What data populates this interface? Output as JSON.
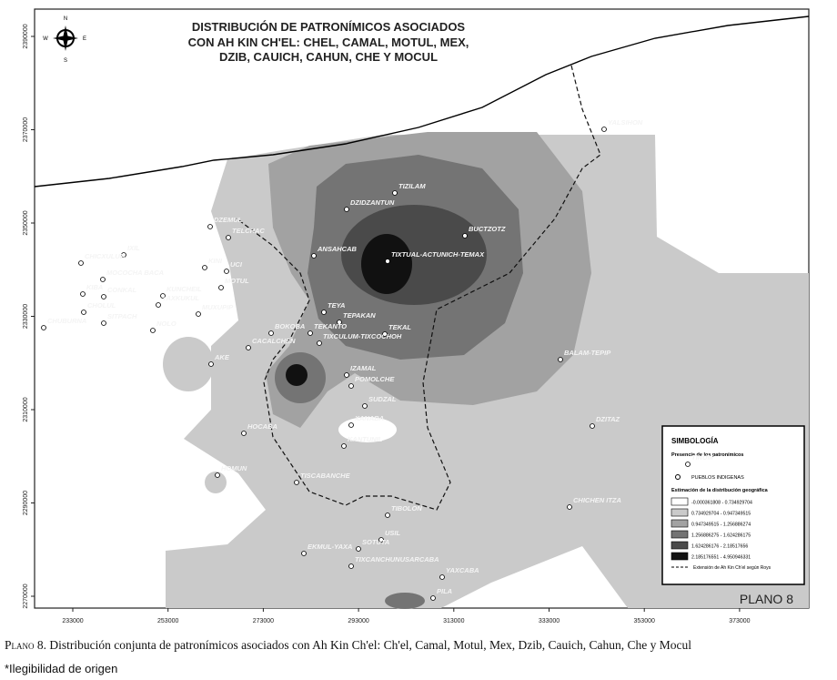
{
  "map": {
    "title": [
      "DISTRIBUCIÓN DE PATRONÍMICOS ASOCIADOS",
      "CON AH KIN CH'EL: CHEL, CAMAL, MOTUL, MEX,",
      "DZIB, CAUICH, CAHUN, CHE Y MOCUL"
    ],
    "compass": {
      "n": "N",
      "s": "S",
      "e": "E",
      "w": "W"
    },
    "x_ticks": [
      233000,
      253000,
      273000,
      293000,
      313000,
      333000,
      353000,
      373000
    ],
    "y_ticks": [
      2390000,
      2370000,
      2350000,
      2330000,
      2310000,
      2290000,
      2270000
    ],
    "places": [
      "YALSIHON",
      "TIZILAM",
      "DZIDZANTUN",
      "DZEMUL",
      "TELCHAC",
      "BUCTZOTZ",
      "TIXTUAL-ACTUNICH-TEMAX",
      "ANSAHCAB",
      "IXIL",
      "CHICXULUB",
      "KINI",
      "UCI",
      "MOCOCHA BACA",
      "MOTUL",
      "KIBA",
      "CONKAL",
      "KUNCHEIL",
      "YAXKUKUL",
      "CHOLUL",
      "TEYA",
      "MUXUPIP",
      "SITPACH",
      "TEPAKAN",
      "CHUBURNA",
      "NOLO",
      "TEKANTO",
      "TEKAL",
      "BOKOBA",
      "TIXCULUM-TIXCOCHOH",
      "CACALCHEN",
      "BALAM-TEPIP",
      "AKE",
      "IZAMAL",
      "POMOLCHE",
      "SUDZAL",
      "XANABA",
      "DZITAZ",
      "HOCABA",
      "KANTUNIL",
      "HOMUN",
      "TISCABANCHE",
      "TINUM",
      "CHICHEN ITZA",
      "TIBOLON",
      "USIL",
      "EKMUL-YAXA",
      "SOTUTA",
      "TIXCANCHUNUSARCABA",
      "YAXCABA",
      "PILA"
    ],
    "legend": {
      "title": "SIMBOLOGÍA",
      "presence": "Presencia de los patronímicos",
      "towns": "PUEBLOS INDIGENAS",
      "estimation": "Estimación de la distribución geográfica",
      "classes": [
        {
          "label": "-0.000361808 - 0.734929704",
          "color": "#ffffff"
        },
        {
          "label": "0.734929704 - 0.947349515",
          "color": "#cacaca"
        },
        {
          "label": "0.947349515 - 1.256886274",
          "color": "#a2a2a2"
        },
        {
          "label": "1.256886275 - 1.624286175",
          "color": "#747474"
        },
        {
          "label": "1.624286176 - 2.18517656",
          "color": "#4a4a4a"
        },
        {
          "label": "2.185176551 - 4.950946331",
          "color": "#111111"
        }
      ],
      "boundary": "Extensión de Ah Kin Ch'el según Roys"
    },
    "plano": "PLANO 8",
    "caption": {
      "prefix": "Plano",
      "text": "8. Distribución conjunta de patronímicos asociados con Ah Kin Ch'el: Ch'el, Camal, Motul, Mex, Dzib, Cauich, Cahun, Che y Mocul"
    },
    "note": "*Ilegibilidad de origen"
  }
}
